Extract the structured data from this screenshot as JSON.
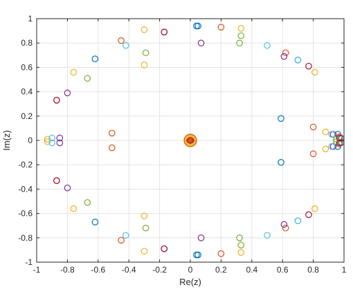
{
  "chart_data": {
    "type": "scatter",
    "title": "",
    "xlabel": "Re(z)",
    "ylabel": "Im(z)",
    "xlim": [
      -1,
      1
    ],
    "ylim": [
      -1,
      1
    ],
    "grid": true,
    "legend": "none",
    "x_ticks": [
      "-1",
      "-0.8",
      "-0.6",
      "-0.4",
      "-0.2",
      "0",
      "0.2",
      "0.4",
      "0.6",
      "0.8",
      "1"
    ],
    "y_ticks": [
      "1",
      "0.8",
      "0.6",
      "0.4",
      "0.2",
      "0",
      "-0.2",
      "-0.4",
      "-0.6",
      "-0.8",
      "-1"
    ],
    "marker": "open-circle",
    "colors": [
      "#0072BD",
      "#D95319",
      "#EDB120",
      "#7E2F8E",
      "#77AC30",
      "#4DBEEE",
      "#A2142F"
    ],
    "series": [
      {
        "color": "#0072BD",
        "points": [
          [
            0.04,
            0.94
          ],
          [
            0.7,
            0.66
          ],
          [
            0.59,
            0.18
          ],
          [
            0.96,
            0.05
          ],
          [
            0.98,
            0.02
          ],
          [
            -0.62,
            0.67
          ],
          [
            0.05,
            0.94
          ]
        ]
      },
      {
        "color": "#D95319",
        "points": [
          [
            0.2,
            0.93
          ],
          [
            0.62,
            0.72
          ],
          [
            0.8,
            0.11
          ],
          [
            -0.45,
            0.82
          ],
          [
            -0.87,
            0.33
          ],
          [
            -0.51,
            0.06
          ],
          [
            0.97,
            0.03
          ]
        ]
      },
      {
        "color": "#EDB120",
        "points": [
          [
            -0.3,
            0.91
          ],
          [
            0.33,
            0.92
          ],
          [
            0.81,
            0.56
          ],
          [
            0.88,
            0.07
          ],
          [
            -0.76,
            0.56
          ],
          [
            -0.93,
            0.01
          ],
          [
            -0.3,
            0.62
          ]
        ]
      },
      {
        "color": "#7E2F8E",
        "points": [
          [
            0.07,
            0.8
          ],
          [
            -0.8,
            0.39
          ],
          [
            -0.85,
            0.02
          ],
          [
            0.93,
            0.05
          ],
          [
            0.61,
            0.69
          ],
          [
            -0.17,
            0.89
          ]
        ]
      },
      {
        "color": "#77AC30",
        "points": [
          [
            0.33,
            0.86
          ],
          [
            0.32,
            0.8
          ],
          [
            -0.67,
            0.51
          ],
          [
            0.95,
            0.01
          ],
          [
            -0.29,
            0.72
          ]
        ]
      },
      {
        "color": "#4DBEEE",
        "points": [
          [
            0.5,
            0.78
          ],
          [
            -0.42,
            0.78
          ],
          [
            0.92,
            0.05
          ],
          [
            -0.9,
            0.02
          ],
          [
            0.7,
            0.66
          ]
        ]
      },
      {
        "color": "#A2142F",
        "points": [
          [
            -0.17,
            0.89
          ],
          [
            0.77,
            0.61
          ],
          [
            0.97,
            0.02
          ],
          [
            -0.87,
            0.33
          ],
          [
            0.0,
            0.0
          ]
        ]
      }
    ],
    "mirror_about_real_axis": true,
    "origin_blob": {
      "x": 0,
      "y": 0,
      "outer_color": "#EDB120",
      "inner_color": "#D95319"
    }
  }
}
